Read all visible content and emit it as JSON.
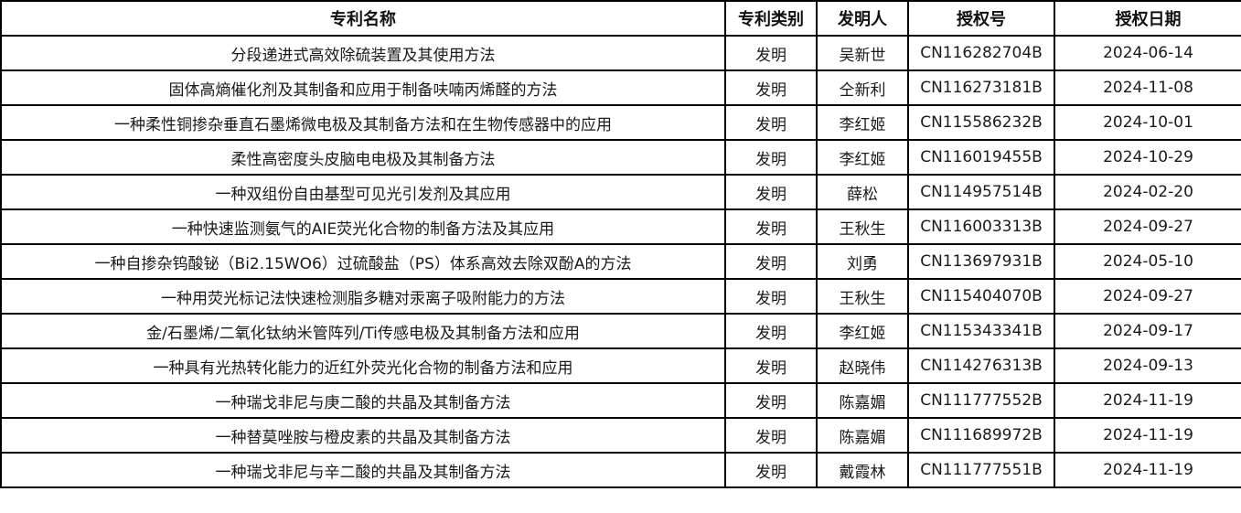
{
  "table": {
    "headers": [
      "专利名称",
      "专利类别",
      "发明人",
      "授权号",
      "授权日期"
    ],
    "rows": [
      [
        "分段递进式高效除硫装置及其使用方法",
        "发明",
        "吴新世",
        "CN116282704B",
        "2024-06-14"
      ],
      [
        "固体高熵催化剂及其制备和应用于制备呋喃丙烯醛的方法",
        "发明",
        "仝新利",
        "CN116273181B",
        "2024-11-08"
      ],
      [
        "一种柔性铜掺杂垂直石墨烯微电极及其制备方法和在生物传感器中的应用",
        "发明",
        "李红姬",
        "CN115586232B",
        "2024-10-01"
      ],
      [
        "柔性高密度头皮脑电电极及其制备方法",
        "发明",
        "李红姬",
        "CN116019455B",
        "2024-10-29"
      ],
      [
        "一种双组份自由基型可见光引发剂及其应用",
        "发明",
        "薛松",
        "CN114957514B",
        "2024-02-20"
      ],
      [
        "一种快速监测氨气的AIE荧光化合物的制备方法及其应用",
        "发明",
        "王秋生",
        "CN116003313B",
        "2024-09-27"
      ],
      [
        "一种自掺杂钨酸铋（Bi2.15WO6）过硫酸盐（PS）体系高效去除双酚A的方法",
        "发明",
        "刘勇",
        "CN113697931B",
        "2024-05-10"
      ],
      [
        "一种用荧光标记法快速检测脂多糖对汞离子吸附能力的方法",
        "发明",
        "王秋生",
        "CN115404070B",
        "2024-09-27"
      ],
      [
        "金/石墨烯/二氧化钛纳米管阵列/Ti传感电极及其制备方法和应用",
        "发明",
        "李红姬",
        "CN115343341B",
        "2024-09-17"
      ],
      [
        "一种具有光热转化能力的近红外荧光化合物的制备方法和应用",
        "发明",
        "赵晓伟",
        "CN114276313B",
        "2024-09-13"
      ],
      [
        "一种瑞戈非尼与庚二酸的共晶及其制备方法",
        "发明",
        "陈嘉媚",
        "CN111777552B",
        "2024-11-19"
      ],
      [
        "一种替莫唑胺与橙皮素的共晶及其制备方法",
        "发明",
        "陈嘉媚",
        "CN111689972B",
        "2024-11-19"
      ],
      [
        "一种瑞戈非尼与辛二酸的共晶及其制备方法",
        "发明",
        "戴霞林",
        "CN111777551B",
        "2024-11-19"
      ]
    ]
  }
}
